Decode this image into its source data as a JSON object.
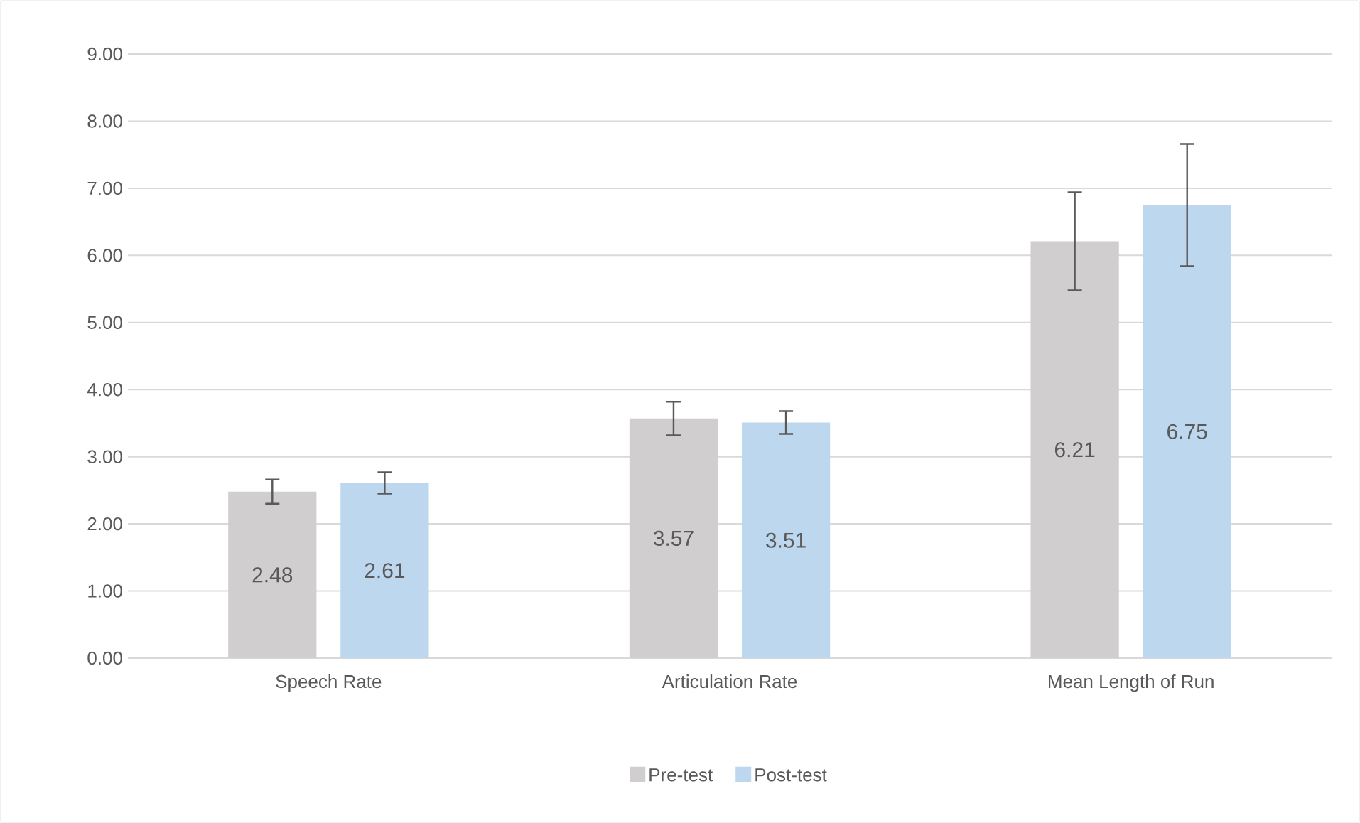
{
  "chart_data": {
    "type": "bar",
    "categories": [
      "Speech Rate",
      "Articulation Rate",
      "Mean Length of Run"
    ],
    "series": [
      {
        "name": "Pre-test",
        "color": "#d0cece",
        "values": [
          2.48,
          3.57,
          6.21
        ],
        "errors": [
          0.18,
          0.25,
          0.73
        ]
      },
      {
        "name": "Post-test",
        "color": "#bdd7ee",
        "values": [
          2.61,
          3.51,
          6.75
        ],
        "errors": [
          0.16,
          0.17,
          0.91
        ]
      }
    ],
    "ylim": [
      0,
      9
    ],
    "yticks": [
      {
        "value": 0,
        "label": "0.00"
      },
      {
        "value": 1,
        "label": "1.00"
      },
      {
        "value": 2,
        "label": "2.00"
      },
      {
        "value": 3,
        "label": "3.00"
      },
      {
        "value": 4,
        "label": "4.00"
      },
      {
        "value": 5,
        "label": "5.00"
      },
      {
        "value": 6,
        "label": "6.00"
      },
      {
        "value": 7,
        "label": "7.00"
      },
      {
        "value": 8,
        "label": "8.00"
      },
      {
        "value": 9,
        "label": "9.00"
      }
    ],
    "grid": "y",
    "legend": "bottom",
    "data_labels": true
  }
}
